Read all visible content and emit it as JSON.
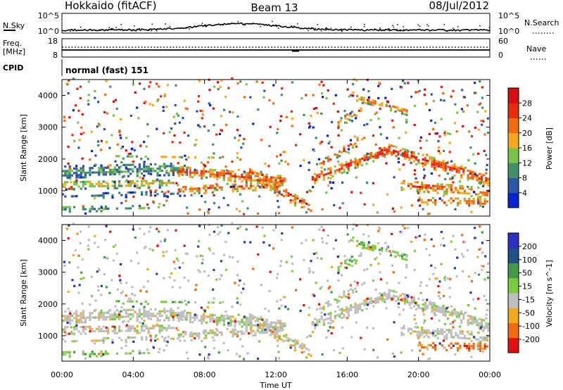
{
  "header": {
    "site": "Hokkaido (fitACF)",
    "beam": "Beam 13",
    "date": "08/Jul/2012"
  },
  "noise_panel": {
    "left_label": "N.Sky",
    "right_label": "N.Search",
    "left_ticks": [
      "10^5",
      "10^0"
    ],
    "right_ticks": [
      "10^5",
      "10^0"
    ]
  },
  "freq_panel": {
    "left_label": "Freq.",
    "left_unit": "[MHz]",
    "right_label": "Nave",
    "left_ticks": [
      "18",
      "8"
    ],
    "right_ticks": [
      "60",
      "0"
    ]
  },
  "cpid": {
    "label": "CPID",
    "value": "normal (fast) 151"
  },
  "colors": {
    "power": [
      "#0a23d2",
      "#2d55a8",
      "#3f8f6a",
      "#7ac24a",
      "#f5a81f",
      "#f06a14",
      "#e62b0f",
      "#d40f0f"
    ],
    "velocity": [
      "#e31010",
      "#f26a12",
      "#f2a91c",
      "#bebebe",
      "#7acc3a",
      "#3f9a4a",
      "#214f8a",
      "#2b2fc4"
    ]
  },
  "chart_data": [
    {
      "type": "heatmap",
      "panel": "power",
      "ylabel": "Slant Range [km]",
      "yticks": [
        "1000",
        "2000",
        "3000",
        "4000"
      ],
      "ylim": [
        200,
        4500
      ],
      "xlim_hours": [
        0,
        24
      ],
      "colorbar_label": "Power [dB]",
      "colorbar_ticks": [
        "4",
        "8",
        "12",
        "16",
        "20",
        "24",
        "28"
      ],
      "features": [
        {
          "start": 0,
          "end": 7,
          "range_from": 1300,
          "range_to": 1800,
          "level": "low"
        },
        {
          "start": 6.5,
          "end": 13,
          "range_from": 900,
          "range_to": 1800,
          "level": "high"
        },
        {
          "start": 14.5,
          "end": 18.3,
          "range_from": 1300,
          "range_to": 2400,
          "level": "high"
        },
        {
          "start": 18.3,
          "end": 24,
          "range_from": 700,
          "range_to": 2200,
          "level": "high"
        },
        {
          "start": 16.5,
          "end": 19,
          "range_from": 3500,
          "range_to": 3900,
          "level": "medium"
        }
      ]
    },
    {
      "type": "heatmap",
      "panel": "velocity",
      "ylabel": "Slant Range [km]",
      "yticks": [
        "1000",
        "2000",
        "3000",
        "4000"
      ],
      "ylim": [
        200,
        4500
      ],
      "xlim_hours": [
        0,
        24
      ],
      "xticks": [
        "00:00",
        "04:00",
        "08:00",
        "12:00",
        "16:00",
        "20:00",
        "00:00"
      ],
      "xlabel": "Time UT",
      "colorbar_label": "Velocity [m s^-1]",
      "colorbar_ticks": [
        "-200",
        "-100",
        "-50",
        "-15",
        "15",
        "50",
        "100",
        "200"
      ],
      "features": [
        {
          "start": 0,
          "end": 13,
          "range_from": 900,
          "range_to": 1800,
          "velocity": "near-zero"
        },
        {
          "start": 14.5,
          "end": 20,
          "range_from": 1300,
          "range_to": 2400,
          "velocity": "near-zero"
        },
        {
          "start": 16.5,
          "end": 19,
          "range_from": 3300,
          "range_to": 3900,
          "velocity": "positive"
        },
        {
          "start": 0,
          "end": 6,
          "range_from": 300,
          "range_to": 500,
          "velocity": "positive"
        }
      ]
    }
  ]
}
